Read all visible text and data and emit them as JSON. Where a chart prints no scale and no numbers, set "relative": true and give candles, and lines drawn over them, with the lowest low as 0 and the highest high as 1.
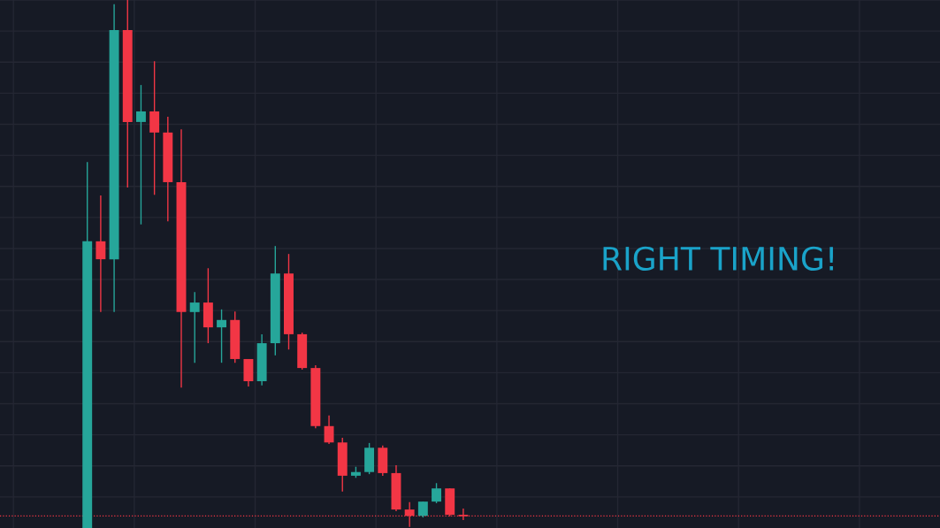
{
  "chart_data": {
    "type": "candlestick",
    "relative": true,
    "categories": [
      null,
      null,
      null,
      null,
      null,
      null,
      null,
      null,
      null,
      null,
      null,
      null,
      null,
      null,
      null,
      null,
      null,
      null,
      null,
      null,
      null,
      null,
      null,
      null,
      null,
      null,
      null,
      null,
      null,
      null,
      null,
      null,
      null,
      null,
      null,
      null,
      null,
      null,
      null,
      null,
      null,
      null,
      null,
      null,
      null,
      null,
      null,
      null,
      null,
      null,
      null,
      null,
      null,
      null,
      null,
      null,
      null,
      null,
      null,
      null,
      null,
      null,
      null,
      null,
      null,
      null,
      null,
      null,
      null,
      null
    ],
    "ohlc": [
      null,
      null,
      null,
      null,
      null,
      null,
      [
        0,
        0.693,
        0,
        0.543
      ],
      [
        0.543,
        0.63,
        0.409,
        0.509
      ],
      [
        0.509,
        0.992,
        0.409,
        0.943
      ],
      [
        0.943,
        1,
        0.645,
        0.769
      ],
      [
        0.769,
        0.839,
        0.575,
        0.789
      ],
      [
        0.789,
        0.884,
        0.631,
        0.749
      ],
      [
        0.749,
        0.779,
        0.581,
        0.655
      ],
      [
        0.655,
        0.755,
        0.266,
        0.409
      ],
      [
        0.409,
        0.447,
        0.313,
        0.427
      ],
      [
        0.427,
        0.492,
        0.35,
        0.38
      ],
      [
        0.38,
        0.414,
        0.313,
        0.394
      ],
      [
        0.394,
        0.41,
        0.313,
        0.32
      ],
      [
        0.32,
        0.32,
        0.268,
        0.278
      ],
      [
        0.278,
        0.367,
        0.27,
        0.35
      ],
      [
        0.35,
        0.534,
        0.327,
        0.482
      ],
      [
        0.482,
        0.519,
        0.338,
        0.367
      ],
      [
        0.367,
        0.37,
        0.3,
        0.303
      ],
      [
        0.303,
        0.308,
        0.189,
        0.193
      ],
      [
        0.193,
        0.213,
        0.159,
        0.162
      ],
      [
        0.162,
        0.171,
        0.069,
        0.099
      ],
      [
        0.099,
        0.116,
        0.095,
        0.106
      ],
      [
        0.106,
        0.161,
        0.102,
        0.152
      ],
      [
        0.152,
        0.156,
        0.099,
        0.104
      ],
      [
        0.104,
        0.119,
        0.032,
        0.035
      ],
      [
        0.035,
        0.049,
        0.002,
        0.023
      ],
      [
        0.023,
        0.05,
        0.02,
        0.05
      ],
      [
        0.05,
        0.085,
        0.047,
        0.075
      ],
      [
        0.075,
        0.075,
        0.022,
        0.025
      ],
      [
        0.025,
        0.037,
        0.015,
        0.022
      ],
      null,
      null,
      null,
      null,
      null,
      null,
      null,
      null,
      null,
      null,
      null,
      null,
      null,
      null,
      null,
      null,
      null,
      null,
      null,
      null,
      null,
      null,
      null,
      null,
      null,
      null,
      null,
      null,
      null,
      null,
      null,
      null,
      null,
      null,
      null
    ],
    "colors": [
      null,
      null,
      null,
      null,
      null,
      null,
      "#26a69a",
      "#f23645",
      "#26a69a",
      "#f23645",
      "#26a69a",
      "#f23645",
      "#f23645",
      "#f23645",
      "#26a69a",
      "#f23645",
      "#26a69a",
      "#f23645",
      "#f23645",
      "#26a69a",
      "#26a69a",
      "#f23645",
      "#f23645",
      "#f23645",
      "#f23645",
      "#f23645",
      "#26a69a",
      "#26a69a",
      "#f23645",
      "#f23645",
      "#f23645",
      "#26a69a",
      "#26a69a",
      "#f23645",
      "#f23645",
      null,
      null,
      null,
      null,
      null,
      null,
      null,
      null,
      null,
      null,
      null,
      null,
      null,
      null,
      null,
      null,
      null,
      null,
      null,
      null,
      null,
      null,
      null,
      null,
      null,
      null,
      null,
      null,
      null,
      null,
      null,
      null,
      null,
      null,
      null
    ],
    "ref_lines": [
      {
        "axis": "y",
        "value": 0.023,
        "color": "#f23645",
        "line_style": "dotted"
      }
    ],
    "grid": true,
    "annotations": [
      "RIGHT TIMING!"
    ]
  }
}
